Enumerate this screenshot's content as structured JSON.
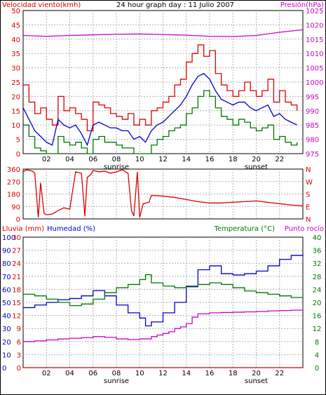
{
  "colors": {
    "wind_avg": "#e00000",
    "wind_gust": "#0000cc",
    "wind_min": "#007700",
    "pressure": "#cc00cc",
    "direction": "#dd0000",
    "humidity": "#0000cc",
    "temperature": "#007700",
    "dewpoint": "#cc00cc",
    "rain": "#dd0000",
    "grid": "#b0b0b0",
    "frame": "#000000"
  },
  "chart_data": [
    {
      "type": "line",
      "title": "24 hour graph day : 11 Julio 2007",
      "left_axis_label": "Velocidad viento(kmh)",
      "right_axis_label": "Presión(hPa)",
      "left_ticks": [
        "50",
        "45",
        "40",
        "35",
        "30",
        "25",
        "20",
        "15",
        "10",
        "5",
        "0"
      ],
      "right_ticks": [
        "1025",
        "1020",
        "1015",
        "1010",
        "1005",
        "1000",
        "995",
        "990",
        "985",
        "980",
        "975"
      ],
      "ylim_left": [
        0,
        50
      ],
      "ylim_right": [
        975,
        1025
      ],
      "x_ticks": [
        "02",
        "04",
        "06",
        "08",
        "10",
        "12",
        "14",
        "16",
        "18",
        "20",
        "22"
      ],
      "x_range_hours": [
        0,
        24
      ],
      "sunrise_label": "sunrise",
      "sunset_label": "sunset",
      "sunrise_hour": 8,
      "sunset_hour": 20,
      "series": [
        {
          "key": "gust",
          "color_key": "wind_avg",
          "x": [
            0,
            0.5,
            1,
            1.5,
            2,
            2.5,
            3,
            3.5,
            4,
            4.5,
            5,
            5.5,
            6,
            6.5,
            7,
            7.5,
            8,
            8.5,
            9,
            9.5,
            10,
            10.5,
            11,
            11.5,
            12,
            12.5,
            13,
            13.5,
            14,
            14.5,
            15,
            15.5,
            16,
            16.5,
            17,
            17.5,
            18,
            18.5,
            19,
            19.5,
            20,
            20.5,
            21,
            21.5,
            22,
            22.5,
            23,
            23.5
          ],
          "values": [
            24,
            18,
            14,
            16,
            12,
            10,
            20,
            15,
            16,
            14,
            12,
            8,
            18,
            17,
            16,
            14,
            13,
            12,
            14,
            10,
            12,
            10,
            15,
            16,
            18,
            20,
            24,
            26,
            32,
            35,
            38,
            34,
            36,
            28,
            24,
            22,
            20,
            22,
            25,
            22,
            20,
            22,
            26,
            18,
            22,
            18,
            17,
            15
          ]
        },
        {
          "key": "avg",
          "color_key": "wind_gust",
          "x": [
            0,
            0.5,
            1,
            1.5,
            2,
            2.5,
            3,
            3.5,
            4,
            4.5,
            5,
            5.5,
            6,
            6.5,
            7,
            7.5,
            8,
            8.5,
            9,
            9.5,
            10,
            10.5,
            11,
            11.5,
            12,
            12.5,
            13,
            13.5,
            14,
            14.5,
            15,
            15.5,
            16,
            16.5,
            17,
            17.5,
            18,
            18.5,
            19,
            19.5,
            20,
            20.5,
            21,
            21.5,
            22,
            22.5,
            23,
            23.5
          ],
          "values": [
            16,
            12,
            8,
            6,
            4,
            3,
            12,
            10,
            9,
            10,
            7,
            3,
            10,
            11,
            10,
            9,
            9,
            8,
            8,
            5,
            6,
            4,
            8,
            10,
            11,
            13,
            15,
            17,
            20,
            24,
            27,
            28,
            26,
            22,
            19,
            18,
            17,
            18,
            18,
            16,
            15,
            16,
            17,
            13,
            14,
            12,
            11,
            10
          ]
        },
        {
          "key": "min",
          "color_key": "wind_min",
          "x": [
            0,
            0.5,
            1,
            1.5,
            2,
            2.5,
            3,
            3.5,
            4,
            4.5,
            5,
            5.5,
            6,
            6.5,
            7,
            7.5,
            8,
            8.5,
            9,
            9.5,
            10,
            10.5,
            11,
            11.5,
            12,
            12.5,
            13,
            13.5,
            14,
            14.5,
            15,
            15.5,
            16,
            16.5,
            17,
            17.5,
            18,
            18.5,
            19,
            19.5,
            20,
            20.5,
            21,
            21.5,
            22,
            22.5,
            23,
            23.5
          ],
          "values": [
            10,
            6,
            2,
            1,
            0,
            0,
            6,
            4,
            3,
            4,
            2,
            0,
            5,
            6,
            4,
            4,
            3,
            2,
            2,
            0,
            0,
            0,
            3,
            5,
            6,
            8,
            9,
            10,
            14,
            16,
            20,
            22,
            20,
            16,
            13,
            12,
            10,
            12,
            11,
            9,
            8,
            9,
            10,
            5,
            6,
            4,
            3,
            4
          ]
        },
        {
          "key": "pressure",
          "color_key": "pressure",
          "axis": "right",
          "x": [
            0,
            2,
            4,
            6,
            8,
            10,
            12,
            14,
            16,
            18,
            20,
            22,
            24
          ],
          "values": [
            1016.3,
            1016.0,
            1016.3,
            1016.5,
            1016.7,
            1016.8,
            1016.6,
            1016.4,
            1016.0,
            1015.9,
            1016.3,
            1017.4,
            1018.3
          ]
        }
      ]
    },
    {
      "type": "line",
      "left_ticks": [
        "360",
        "270",
        "180",
        "90",
        "0"
      ],
      "ylim": [
        0,
        360
      ],
      "right_ticks": [
        "N",
        "W",
        "S",
        "E",
        "N"
      ],
      "series": [
        {
          "key": "direction",
          "color_key": "direction",
          "x": [
            0,
            0.3,
            0.8,
            1,
            1.3,
            1.5,
            1.8,
            2,
            2.5,
            3,
            3.5,
            4,
            4.5,
            5,
            5.3,
            5.5,
            5.8,
            6,
            6.5,
            7,
            7.5,
            8,
            8.5,
            9,
            9.3,
            9.5,
            9.8,
            10,
            10.3,
            10.8,
            11,
            12,
            13,
            14,
            15,
            16,
            17,
            18,
            19,
            20,
            21,
            22,
            23,
            24
          ],
          "values": [
            340,
            355,
            345,
            330,
            10,
            260,
            40,
            30,
            35,
            60,
            80,
            70,
            340,
            330,
            20,
            300,
            320,
            350,
            340,
            345,
            330,
            340,
            355,
            330,
            60,
            20,
            340,
            10,
            110,
            120,
            170,
            165,
            155,
            140,
            125,
            115,
            115,
            120,
            125,
            130,
            120,
            110,
            100,
            95
          ]
        }
      ]
    },
    {
      "type": "line",
      "axis_rain_label": "Lluvia (mm)",
      "axis_humidity_label": "Humedad (%)",
      "axis_temp_label": "Temperatura (°C)",
      "axis_dew_label": "Punto rocío",
      "humidity_ticks": [
        "100",
        "90",
        "80",
        "70",
        "60",
        "50",
        "40",
        "30",
        "20",
        "10",
        "0"
      ],
      "rain_ticks": [
        "30",
        "27",
        "24",
        "21",
        "18",
        "15",
        "12",
        "9",
        "6",
        "3",
        "0"
      ],
      "temp_ticks": [
        "40",
        "36",
        "32",
        "28",
        "24",
        "20",
        "16",
        "12",
        "8",
        "4",
        "0"
      ],
      "ylim_humidity": [
        0,
        100
      ],
      "ylim_rain": [
        0,
        30
      ],
      "ylim_temp": [
        0,
        40
      ],
      "x_ticks": [
        "02",
        "04",
        "06",
        "08",
        "10",
        "12",
        "14",
        "16",
        "18",
        "20",
        "22"
      ],
      "sunrise_label": "sunrise",
      "sunset_label": "sunset",
      "series": [
        {
          "key": "humidity",
          "color_key": "humidity",
          "axis": "humidity",
          "x": [
            0,
            1,
            2,
            3,
            4,
            5,
            6,
            7,
            8,
            9,
            10,
            10.5,
            11,
            12,
            13,
            14,
            15,
            16,
            17,
            18,
            19,
            20,
            21,
            22,
            23,
            24
          ],
          "values": [
            46,
            48,
            50,
            52,
            53,
            55,
            59,
            55,
            48,
            42,
            38,
            32,
            35,
            42,
            50,
            62,
            75,
            78,
            72,
            71,
            72,
            74,
            78,
            83,
            86,
            87
          ]
        },
        {
          "key": "temperature",
          "color_key": "temperature",
          "axis": "temp",
          "x": [
            0,
            1,
            2,
            3,
            4,
            5,
            6,
            7,
            8,
            9,
            10,
            10.5,
            11,
            12,
            13,
            14,
            15,
            16,
            17,
            18,
            19,
            20,
            21,
            22,
            23,
            24
          ],
          "values": [
            22.5,
            22.0,
            21.0,
            20.0,
            19.0,
            19.5,
            21.0,
            23.0,
            24.5,
            25.5,
            27.0,
            28.5,
            26.0,
            25.0,
            24.5,
            25.0,
            25.5,
            26.0,
            25.5,
            24.5,
            23.5,
            23.0,
            22.5,
            22.0,
            21.5,
            21.5
          ]
        },
        {
          "key": "dewpoint",
          "color_key": "dewpoint",
          "axis": "temp",
          "x": [
            0,
            1,
            2,
            3,
            4,
            5,
            6,
            7,
            8,
            9,
            10,
            11,
            11.5,
            12,
            12.5,
            13,
            13.5,
            14,
            14.5,
            15,
            16,
            17,
            18,
            19,
            20,
            21,
            22,
            23,
            24
          ],
          "values": [
            8.0,
            8.2,
            8.5,
            8.8,
            9.0,
            9.2,
            9.5,
            9.3,
            8.8,
            8.6,
            8.8,
            9.5,
            10.0,
            10.5,
            11.0,
            12.0,
            12.5,
            13.5,
            15.5,
            16.5,
            16.8,
            16.9,
            17.0,
            17.1,
            17.2,
            17.4,
            17.5,
            17.6,
            17.6
          ]
        },
        {
          "key": "rain",
          "color_key": "rain",
          "axis": "rain",
          "x": [
            0,
            24
          ],
          "values": [
            0,
            0
          ]
        }
      ]
    }
  ]
}
